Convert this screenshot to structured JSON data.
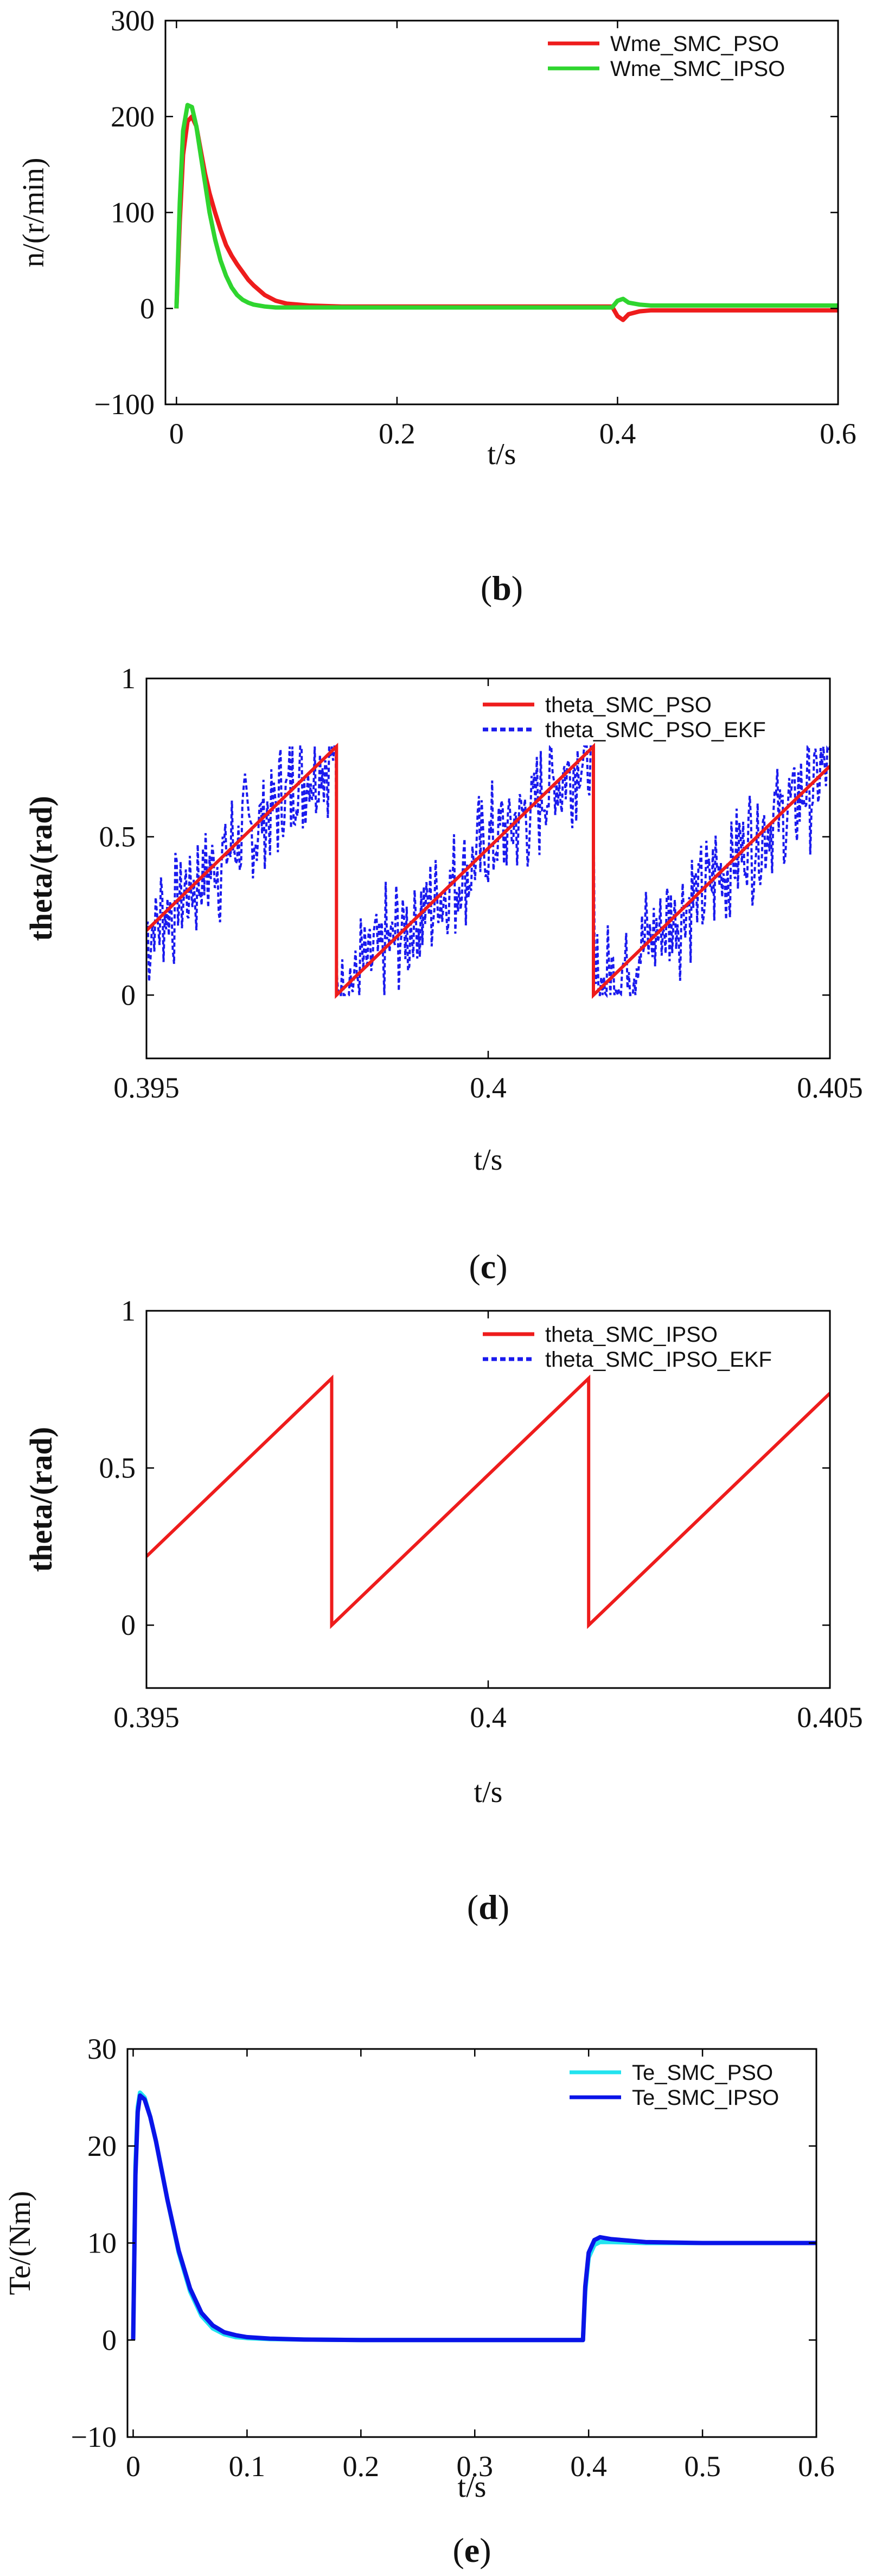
{
  "chart_data": [
    {
      "id": "b",
      "type": "line",
      "caption_open": "(",
      "caption_letter": "b",
      "caption_close": ")",
      "xlabel": "t/s",
      "ylabel": "n/(r/min)",
      "xlim": [
        -0.01,
        0.6
      ],
      "ylim": [
        -100,
        300
      ],
      "xticks": [
        0,
        0.2,
        0.4,
        0.6
      ],
      "xtick_labels": [
        "0",
        "0.2",
        "0.4",
        "0.6"
      ],
      "yticks": [
        -100,
        0,
        100,
        200,
        300
      ],
      "ytick_labels": [
        "−100",
        "0",
        "100",
        "200",
        "300"
      ],
      "series": [
        {
          "name": "Wme_SMC_PSO",
          "color": "#ee1c1c",
          "x": [
            0,
            0.003,
            0.006,
            0.01,
            0.014,
            0.018,
            0.022,
            0.026,
            0.03,
            0.035,
            0.04,
            0.045,
            0.05,
            0.055,
            0.06,
            0.065,
            0.07,
            0.08,
            0.09,
            0.1,
            0.12,
            0.15,
            0.2,
            0.25,
            0.3,
            0.35,
            0.395,
            0.4,
            0.405,
            0.41,
            0.42,
            0.43,
            0.45,
            0.5,
            0.55,
            0.6
          ],
          "y": [
            0,
            90,
            160,
            195,
            200,
            190,
            165,
            140,
            120,
            100,
            82,
            66,
            55,
            46,
            38,
            30,
            24,
            14,
            8,
            5,
            3,
            2,
            2,
            2,
            2,
            2,
            2,
            -8,
            -12,
            -6,
            -3,
            -2,
            -2,
            -2,
            -2,
            -2
          ]
        },
        {
          "name": "Wme_SMC_IPSO",
          "color": "#2fd52f",
          "x": [
            0,
            0.003,
            0.006,
            0.01,
            0.014,
            0.018,
            0.022,
            0.026,
            0.03,
            0.035,
            0.04,
            0.045,
            0.05,
            0.055,
            0.06,
            0.065,
            0.07,
            0.08,
            0.09,
            0.1,
            0.12,
            0.15,
            0.2,
            0.25,
            0.3,
            0.35,
            0.395,
            0.4,
            0.405,
            0.41,
            0.42,
            0.43,
            0.45,
            0.5,
            0.55,
            0.6
          ],
          "y": [
            0,
            110,
            185,
            212,
            210,
            190,
            160,
            130,
            100,
            72,
            50,
            34,
            22,
            14,
            9,
            6,
            4,
            2,
            1,
            1,
            1,
            1,
            1,
            1,
            1,
            1,
            1,
            8,
            10,
            6,
            4,
            3,
            3,
            3,
            3,
            3
          ]
        }
      ],
      "legend_position": "top-right"
    },
    {
      "id": "c",
      "type": "line",
      "caption_open": "(",
      "caption_letter": "c",
      "caption_close": ")",
      "xlabel": "t/s",
      "ylabel": "theta/(rad)",
      "xlim": [
        0.395,
        0.405
      ],
      "ylim": [
        -0.2,
        1
      ],
      "xticks": [
        0.395,
        0.4,
        0.405
      ],
      "xtick_labels": [
        "0.395",
        "0.4",
        "0.405"
      ],
      "yticks": [
        0,
        0.5,
        1
      ],
      "ytick_labels": [
        "0",
        "0.5",
        "1"
      ],
      "sawtooth": {
        "wrap_times": [
          0.39778,
          0.40154
        ],
        "rate": 209,
        "wrap_value": 0.785
      },
      "series": [
        {
          "name": "theta_SMC_PSO",
          "color": "#ee1c1c",
          "style": "solid"
        },
        {
          "name": "theta_SMC_PSO_EKF",
          "color": "#1a1aee",
          "style": "dotted",
          "noisy": true
        }
      ],
      "legend_position": "top-right"
    },
    {
      "id": "d",
      "type": "line",
      "caption_open": "(",
      "caption_letter": "d",
      "caption_close": ")",
      "xlabel": "t/s",
      "ylabel": "theta/(rad)",
      "xlim": [
        0.395,
        0.405
      ],
      "ylim": [
        -0.2,
        1
      ],
      "xticks": [
        0.395,
        0.4,
        0.405
      ],
      "xtick_labels": [
        "0.395",
        "0.4",
        "0.405"
      ],
      "yticks": [
        0,
        0.5,
        1
      ],
      "ytick_labels": [
        "0",
        "0.5",
        "1"
      ],
      "sawtooth": {
        "wrap_times": [
          0.39771,
          0.40147
        ],
        "rate": 209,
        "wrap_value": 0.785
      },
      "series": [
        {
          "name": "theta_SMC_IPSO",
          "color": "#ee1c1c",
          "style": "solid"
        },
        {
          "name": "theta_SMC_IPSO_EKF",
          "color": "#1a1aee",
          "style": "dotted",
          "noisy": false
        }
      ],
      "legend_position": "top-right"
    },
    {
      "id": "e",
      "type": "line",
      "caption_open": "(",
      "caption_letter": "e",
      "caption_close": ")",
      "xlabel": "t/s",
      "ylabel": "Te/(Nm)",
      "xlim": [
        -0.005,
        0.6
      ],
      "ylim": [
        -10,
        30
      ],
      "xticks": [
        0,
        0.1,
        0.2,
        0.3,
        0.4,
        0.5,
        0.6
      ],
      "xtick_labels": [
        "0",
        "0.1",
        "0.2",
        "0.3",
        "0.4",
        "0.5",
        "0.6"
      ],
      "yticks": [
        -10,
        0,
        10,
        20,
        30
      ],
      "ytick_labels": [
        "−10",
        "0",
        "10",
        "20",
        "30"
      ],
      "series": [
        {
          "name": "Te_SMC_PSO",
          "color": "#22e3ef",
          "x": [
            0,
            0.002,
            0.004,
            0.006,
            0.01,
            0.015,
            0.02,
            0.025,
            0.03,
            0.04,
            0.05,
            0.06,
            0.07,
            0.08,
            0.09,
            0.1,
            0.12,
            0.15,
            0.2,
            0.3,
            0.395,
            0.397,
            0.4,
            0.405,
            0.41,
            0.42,
            0.45,
            0.5,
            0.55,
            0.6
          ],
          "y": [
            0,
            18,
            24,
            25.5,
            25,
            23,
            20.5,
            17.5,
            14.5,
            9,
            5,
            2.5,
            1.2,
            0.6,
            0.3,
            0.2,
            0.1,
            0.05,
            0,
            0,
            0,
            5,
            8.5,
            9.8,
            10.1,
            10.1,
            10,
            10,
            10,
            10
          ]
        },
        {
          "name": "Te_SMC_IPSO",
          "color": "#0a14e8",
          "x": [
            0,
            0.002,
            0.004,
            0.006,
            0.01,
            0.015,
            0.02,
            0.025,
            0.03,
            0.04,
            0.05,
            0.06,
            0.07,
            0.08,
            0.09,
            0.1,
            0.12,
            0.15,
            0.2,
            0.3,
            0.395,
            0.397,
            0.4,
            0.405,
            0.41,
            0.42,
            0.45,
            0.5,
            0.55,
            0.6
          ],
          "y": [
            0,
            17,
            23.5,
            25.2,
            24.8,
            23,
            20.5,
            17.5,
            14.5,
            9.2,
            5.3,
            2.8,
            1.5,
            0.8,
            0.5,
            0.3,
            0.15,
            0.05,
            0,
            0,
            0,
            5.5,
            9,
            10.3,
            10.6,
            10.4,
            10.1,
            10,
            10,
            10
          ]
        }
      ],
      "legend_position": "top-right"
    }
  ]
}
